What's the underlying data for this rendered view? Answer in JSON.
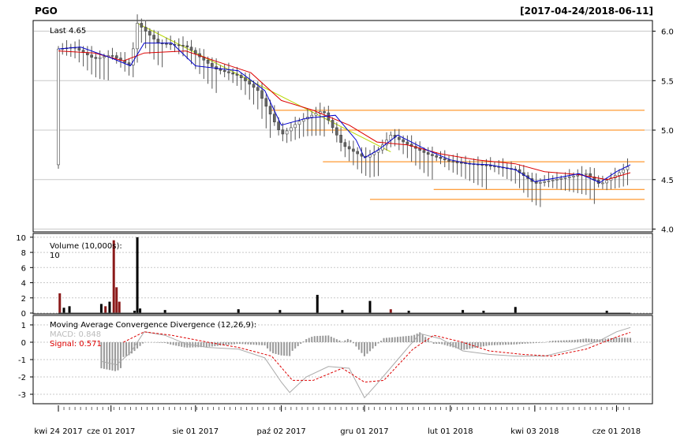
{
  "header": {
    "symbol": "PGO",
    "range": "[2017-04-24/2018-06-11]"
  },
  "price_panel": {
    "last_label": "Last 4.65"
  },
  "volume_panel": {
    "label": "Volume (10,000s):",
    "value": "10"
  },
  "macd_panel": {
    "label": "Moving Average Convergence Divergence (12,26,9):",
    "macd_label": "MACD: 0.848",
    "signal_label": "Signal: 0.571"
  },
  "x_axis_labels": [
    {
      "date": "2017-04-24",
      "text": "kwi 24 2017"
    },
    {
      "date": "2017-06-01",
      "text": "cze 01 2017"
    },
    {
      "date": "2017-08-01",
      "text": "sie 01 2017"
    },
    {
      "date": "2017-10-02",
      "text": "paź 02 2017"
    },
    {
      "date": "2017-12-01",
      "text": "gru 01 2017"
    },
    {
      "date": "2018-02-01",
      "text": "lut 01 2018"
    },
    {
      "date": "2018-04-03",
      "text": "kwi 03 2018"
    },
    {
      "date": "2018-06-01",
      "text": "cze 01 2018"
    }
  ],
  "colors": {
    "ma_fast": "#0000cc",
    "ma_slow": "#dd0000",
    "trendline": "#b8d800",
    "support": "#ff8000",
    "volume_up": "#000000",
    "volume_down": "#8b1a1a",
    "histogram": "#999999",
    "macd_line": "#aaaaaa",
    "signal_line": "#dd0000"
  },
  "chart_data": [
    {
      "type": "candlestick",
      "x_range": [
        "2017-04-24",
        "2018-06-11"
      ],
      "ylim": [
        3.98,
        6.1
      ],
      "y_ticks": [
        4.0,
        4.5,
        5.0,
        5.5,
        6.0
      ],
      "price_points": [
        [
          "2017-04-24",
          5.82
        ],
        [
          "2017-05-05",
          5.84
        ],
        [
          "2017-05-20",
          5.72
        ],
        [
          "2017-06-01",
          5.76
        ],
        [
          "2017-06-15",
          5.65
        ],
        [
          "2017-06-20",
          6.08
        ],
        [
          "2017-07-05",
          5.88
        ],
        [
          "2017-07-25",
          5.85
        ],
        [
          "2017-08-15",
          5.62
        ],
        [
          "2017-09-01",
          5.55
        ],
        [
          "2017-09-15",
          5.4
        ],
        [
          "2017-10-02",
          4.95
        ],
        [
          "2017-10-16",
          5.1
        ],
        [
          "2017-11-01",
          5.2
        ],
        [
          "2017-11-15",
          4.85
        ],
        [
          "2017-12-01",
          4.72
        ],
        [
          "2017-12-11",
          4.8
        ],
        [
          "2017-12-20",
          4.95
        ],
        [
          "2018-01-02",
          4.85
        ],
        [
          "2018-01-15",
          4.76
        ],
        [
          "2018-02-01",
          4.68
        ],
        [
          "2018-02-15",
          4.66
        ],
        [
          "2018-03-01",
          4.64
        ],
        [
          "2018-03-20",
          4.6
        ],
        [
          "2018-04-03",
          4.46
        ],
        [
          "2018-04-25",
          4.52
        ],
        [
          "2018-05-10",
          4.56
        ],
        [
          "2018-05-20",
          4.45
        ],
        [
          "2018-06-01",
          4.55
        ],
        [
          "2018-06-11",
          4.65
        ]
      ],
      "ma_fast": [
        [
          "2017-04-24",
          5.82
        ],
        [
          "2017-05-10",
          5.84
        ],
        [
          "2017-06-01",
          5.73
        ],
        [
          "2017-06-15",
          5.65
        ],
        [
          "2017-06-25",
          5.88
        ],
        [
          "2017-07-15",
          5.88
        ],
        [
          "2017-08-01",
          5.65
        ],
        [
          "2017-09-01",
          5.6
        ],
        [
          "2017-09-20",
          5.4
        ],
        [
          "2017-10-02",
          5.05
        ],
        [
          "2017-10-20",
          5.12
        ],
        [
          "2017-11-10",
          5.15
        ],
        [
          "2017-11-25",
          4.9
        ],
        [
          "2017-12-01",
          4.72
        ],
        [
          "2017-12-11",
          4.8
        ],
        [
          "2017-12-25",
          4.95
        ],
        [
          "2018-01-15",
          4.8
        ],
        [
          "2018-02-01",
          4.7
        ],
        [
          "2018-02-15",
          4.66
        ],
        [
          "2018-03-01",
          4.65
        ],
        [
          "2018-03-20",
          4.6
        ],
        [
          "2018-04-03",
          4.48
        ],
        [
          "2018-04-20",
          4.52
        ],
        [
          "2018-05-05",
          4.56
        ],
        [
          "2018-05-20",
          4.47
        ],
        [
          "2018-06-01",
          4.58
        ],
        [
          "2018-06-11",
          4.65
        ]
      ],
      "ma_slow": [
        [
          "2017-04-24",
          5.8
        ],
        [
          "2017-05-20",
          5.78
        ],
        [
          "2017-06-10",
          5.7
        ],
        [
          "2017-06-25",
          5.78
        ],
        [
          "2017-07-25",
          5.8
        ],
        [
          "2017-08-15",
          5.7
        ],
        [
          "2017-09-10",
          5.58
        ],
        [
          "2017-10-02",
          5.3
        ],
        [
          "2017-10-25",
          5.2
        ],
        [
          "2017-11-20",
          5.05
        ],
        [
          "2017-12-10",
          4.88
        ],
        [
          "2018-01-01",
          4.85
        ],
        [
          "2018-01-25",
          4.76
        ],
        [
          "2018-02-20",
          4.7
        ],
        [
          "2018-03-20",
          4.66
        ],
        [
          "2018-04-10",
          4.58
        ],
        [
          "2018-05-05",
          4.55
        ],
        [
          "2018-05-25",
          4.5
        ],
        [
          "2018-06-11",
          4.57
        ]
      ],
      "trendline": [
        [
          "2017-06-20",
          6.08
        ],
        [
          "2017-12-20",
          4.78
        ]
      ],
      "support_levels": [
        {
          "from": "2017-09-25",
          "to": "2018-06-11",
          "value": 5.2
        },
        {
          "from": "2017-10-20",
          "to": "2018-06-11",
          "value": 5.0
        },
        {
          "from": "2017-11-01",
          "to": "2018-06-11",
          "value": 4.68
        },
        {
          "from": "2018-01-20",
          "to": "2018-06-11",
          "value": 4.4
        },
        {
          "from": "2017-12-05",
          "to": "2018-06-11",
          "value": 4.3
        }
      ]
    },
    {
      "type": "bar",
      "ylim": [
        0,
        10.4
      ],
      "y_ticks": [
        0,
        2,
        4,
        6,
        8,
        10
      ],
      "spikes": [
        [
          "2017-04-25",
          2.6,
          "down"
        ],
        [
          "2017-04-28",
          0.7,
          "up"
        ],
        [
          "2017-05-02",
          0.9,
          "up"
        ],
        [
          "2017-05-25",
          1.2,
          "up"
        ],
        [
          "2017-05-28",
          0.9,
          "down"
        ],
        [
          "2017-05-31",
          1.5,
          "up"
        ],
        [
          "2017-06-03",
          9.6,
          "down"
        ],
        [
          "2017-06-05",
          3.4,
          "down"
        ],
        [
          "2017-06-07",
          1.5,
          "down"
        ],
        [
          "2017-06-18",
          0.3,
          "up"
        ],
        [
          "2017-06-20",
          10.0,
          "up"
        ],
        [
          "2017-06-22",
          0.6,
          "up"
        ],
        [
          "2017-07-10",
          0.4,
          "up"
        ],
        [
          "2017-09-01",
          0.5,
          "up"
        ],
        [
          "2017-10-01",
          0.4,
          "up"
        ],
        [
          "2017-10-28",
          2.4,
          "up"
        ],
        [
          "2017-11-15",
          0.4,
          "up"
        ],
        [
          "2017-12-05",
          1.6,
          "up"
        ],
        [
          "2017-12-20",
          0.5,
          "down"
        ],
        [
          "2018-01-02",
          0.3,
          "up"
        ],
        [
          "2018-02-10",
          0.4,
          "up"
        ],
        [
          "2018-02-25",
          0.3,
          "up"
        ],
        [
          "2018-03-20",
          0.8,
          "up"
        ],
        [
          "2018-05-25",
          0.3,
          "up"
        ]
      ]
    },
    {
      "type": "line",
      "ylim": [
        -3.5,
        1.5
      ],
      "y_ticks": [
        -3,
        -2,
        -1,
        0,
        1
      ],
      "macd": [
        [
          "2017-05-25",
          -1.1
        ],
        [
          "2017-06-05",
          -1.3
        ],
        [
          "2017-06-15",
          -0.6
        ],
        [
          "2017-06-25",
          0.6
        ],
        [
          "2017-07-10",
          0.4
        ],
        [
          "2017-07-25",
          -0.1
        ],
        [
          "2017-08-10",
          -0.3
        ],
        [
          "2017-09-01",
          -0.4
        ],
        [
          "2017-09-20",
          -0.9
        ],
        [
          "2017-10-02",
          -2.3
        ],
        [
          "2017-10-08",
          -2.9
        ],
        [
          "2017-10-20",
          -2.0
        ],
        [
          "2017-11-05",
          -1.4
        ],
        [
          "2017-11-20",
          -1.5
        ],
        [
          "2017-12-01",
          -3.2
        ],
        [
          "2017-12-10",
          -2.4
        ],
        [
          "2017-12-25",
          -1.0
        ],
        [
          "2018-01-10",
          0.5
        ],
        [
          "2018-01-25",
          0.2
        ],
        [
          "2018-02-10",
          -0.5
        ],
        [
          "2018-03-01",
          -0.7
        ],
        [
          "2018-03-20",
          -0.8
        ],
        [
          "2018-04-10",
          -0.8
        ],
        [
          "2018-05-01",
          -0.4
        ],
        [
          "2018-05-20",
          0.1
        ],
        [
          "2018-06-01",
          0.6
        ],
        [
          "2018-06-11",
          0.85
        ]
      ],
      "signal": [
        [
          "2017-06-10",
          0.0
        ],
        [
          "2017-06-25",
          0.6
        ],
        [
          "2017-07-15",
          0.4
        ],
        [
          "2017-08-10",
          0.0
        ],
        [
          "2017-09-01",
          -0.3
        ],
        [
          "2017-09-25",
          -0.8
        ],
        [
          "2017-10-10",
          -2.2
        ],
        [
          "2017-10-25",
          -2.2
        ],
        [
          "2017-11-15",
          -1.5
        ],
        [
          "2017-12-01",
          -2.3
        ],
        [
          "2017-12-15",
          -2.2
        ],
        [
          "2018-01-05",
          -0.4
        ],
        [
          "2018-01-20",
          0.4
        ],
        [
          "2018-02-10",
          0.0
        ],
        [
          "2018-03-01",
          -0.5
        ],
        [
          "2018-03-25",
          -0.7
        ],
        [
          "2018-04-15",
          -0.8
        ],
        [
          "2018-05-10",
          -0.4
        ],
        [
          "2018-06-01",
          0.3
        ],
        [
          "2018-06-11",
          0.57
        ]
      ]
    }
  ]
}
